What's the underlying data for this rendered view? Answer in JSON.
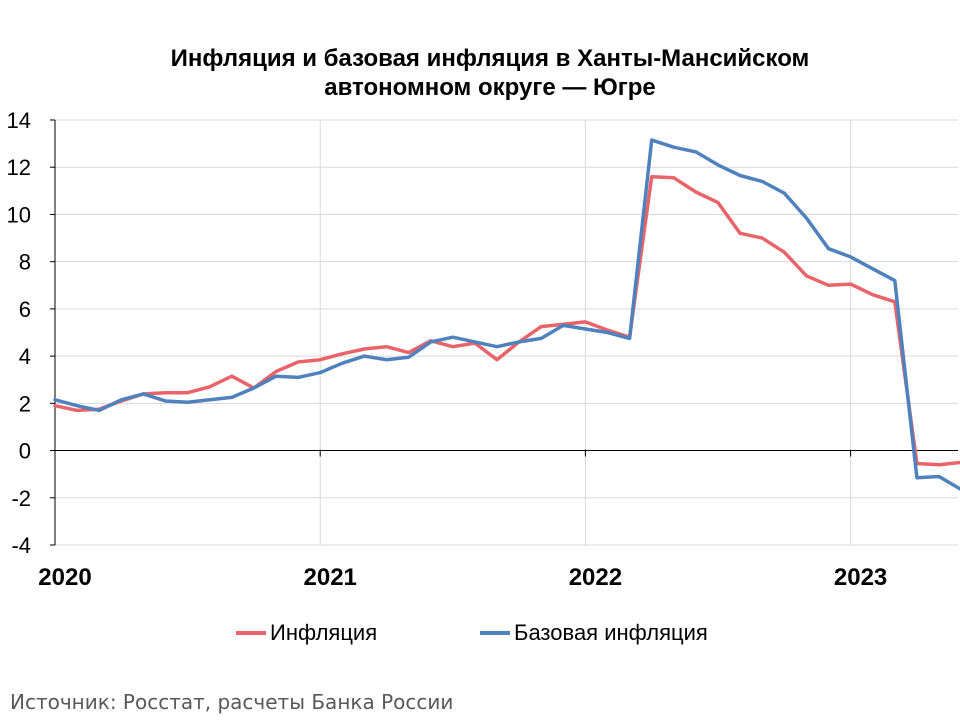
{
  "chart_data": {
    "type": "line",
    "title": "Инфляция и базовая инфляция в Ханты-Мансийском",
    "title_line2": "автономном округе — Югре",
    "xlabel": "",
    "ylabel": "",
    "ylim": [
      -4,
      14
    ],
    "yticks": [
      -4,
      -2,
      0,
      2,
      4,
      6,
      8,
      10,
      12,
      14
    ],
    "year_labels": [
      "2020",
      "2021",
      "2022",
      "2023"
    ],
    "x_start_year": 2020,
    "grid": true,
    "legend_placement": "bottom",
    "series": [
      {
        "name": "Инфляция",
        "color": "#E8646A",
        "values": [
          1.9,
          1.7,
          1.75,
          2.1,
          2.4,
          2.45,
          2.45,
          2.7,
          3.15,
          2.65,
          3.35,
          3.75,
          3.85,
          4.1,
          4.3,
          4.4,
          4.15,
          4.65,
          4.4,
          4.55,
          3.85,
          4.6,
          5.25,
          5.35,
          5.45,
          5.1,
          4.8,
          11.6,
          11.55,
          10.95,
          10.5,
          9.2,
          9.0,
          8.4,
          7.4,
          7.0,
          7.05,
          6.6,
          6.3,
          -0.55,
          -0.6,
          -0.5
        ]
      },
      {
        "name": "Базовая инфляция",
        "color": "#4F81BD",
        "values": [
          2.15,
          1.9,
          1.7,
          2.15,
          2.4,
          2.1,
          2.05,
          2.15,
          2.25,
          2.65,
          3.15,
          3.1,
          3.3,
          3.7,
          4.0,
          3.85,
          3.95,
          4.6,
          4.8,
          4.6,
          4.4,
          4.6,
          4.75,
          5.3,
          5.15,
          5.0,
          4.75,
          13.15,
          12.85,
          12.65,
          12.1,
          11.65,
          11.4,
          10.9,
          9.85,
          8.55,
          8.2,
          7.7,
          7.2,
          -1.15,
          -1.1,
          -1.65
        ]
      }
    ]
  },
  "source": "Источник: Росстат, расчеты Банка России"
}
